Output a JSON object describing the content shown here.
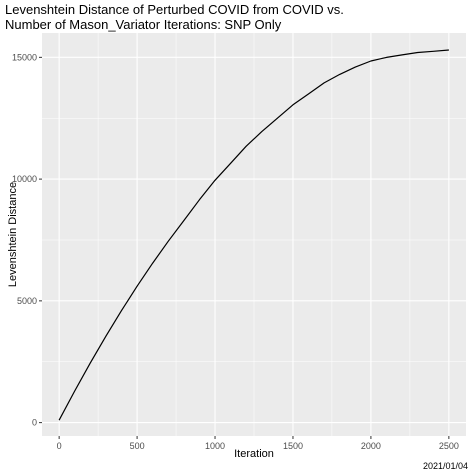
{
  "chart_data": {
    "type": "line",
    "title_line1": "Levenshtein Distance of Perturbed COVID from COVID vs.",
    "title_line2": "Number of Mason_Variator Iterations: SNP Only",
    "xlabel": "Iteration",
    "ylabel": "Levenshtein Distance",
    "caption": "2021/01/04",
    "xlim": [
      -110,
      2610
    ],
    "ylim": [
      -550,
      16000
    ],
    "x_ticks": [
      0,
      500,
      1000,
      1500,
      2000,
      2500
    ],
    "y_ticks": [
      0,
      5000,
      10000,
      15000
    ],
    "x_tick_labels": [
      "0",
      "500",
      "1000",
      "1500",
      "2000",
      "2500"
    ],
    "y_tick_labels": [
      "0",
      "5000",
      "10000",
      "15000"
    ],
    "grid": true,
    "series": [
      {
        "color": "#000000",
        "x": [
          0,
          100,
          200,
          300,
          400,
          500,
          600,
          700,
          800,
          900,
          1000,
          1100,
          1200,
          1300,
          1400,
          1500,
          1600,
          1700,
          1800,
          1900,
          2000,
          2100,
          2200,
          2300,
          2400,
          2500
        ],
        "y": [
          100,
          1300,
          2450,
          3550,
          4600,
          5600,
          6550,
          7450,
          8300,
          9150,
          9950,
          10650,
          11350,
          11950,
          12500,
          13050,
          13500,
          13950,
          14300,
          14600,
          14850,
          15000,
          15100,
          15200,
          15250,
          15300
        ]
      }
    ]
  }
}
